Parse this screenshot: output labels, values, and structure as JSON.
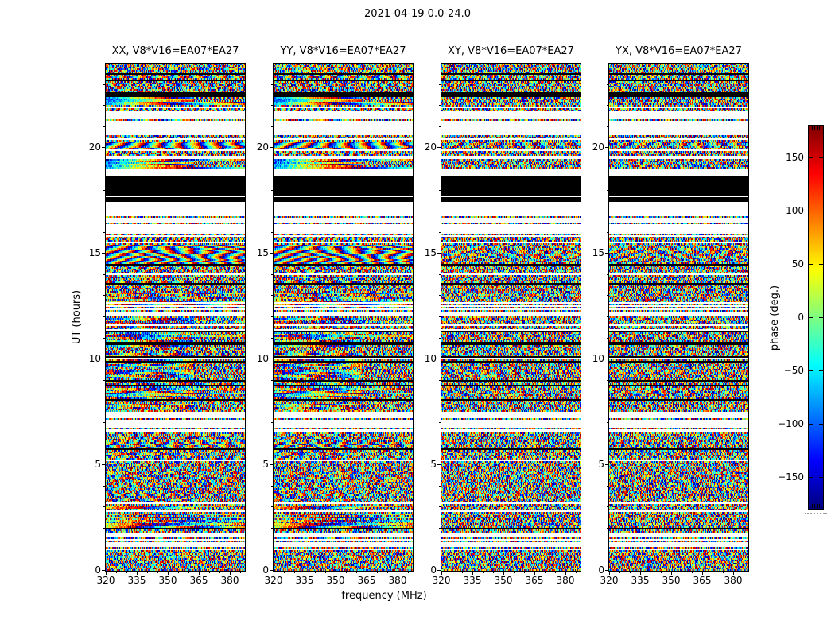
{
  "figure_title": "2021-04-19 0.0-24.0",
  "panels": [
    {
      "pol": "XX",
      "title": "XX, V8*V16=EA07*EA27"
    },
    {
      "pol": "YY",
      "title": "YY, V8*V16=EA07*EA27"
    },
    {
      "pol": "XY",
      "title": "XY, V8*V16=EA07*EA27"
    },
    {
      "pol": "YX",
      "title": "YX, V8*V16=EA07*EA27"
    }
  ],
  "axes": {
    "xlabel": "frequency (MHz)",
    "ylabel": "UT (hours)",
    "x_ticks": [
      320,
      335,
      350,
      365,
      380
    ],
    "y_ticks": [
      0,
      5,
      10,
      15,
      20
    ],
    "x_minor_step_mhz": 5,
    "y_minor_step_hours": 1,
    "x_range_mhz": [
      320,
      387.3
    ],
    "y_range_hours": [
      0,
      24
    ]
  },
  "colorbar": {
    "label": "phase (deg.)",
    "ticks": [
      150,
      100,
      50,
      0,
      -50,
      -100,
      -150
    ],
    "range_deg": [
      -180,
      180
    ],
    "colormap": "jet",
    "top_color": "#800000",
    "bottom_color": "#000080"
  },
  "chart_data": {
    "type": "heatmap",
    "title": "2021-04-19 0.0-24.0",
    "xlabel": "frequency (MHz)",
    "ylabel": "UT (hours)",
    "colorbar_label": "phase (deg.)",
    "colormap": "jet",
    "value_range_deg": [
      -180,
      180
    ],
    "x_range_mhz": [
      320,
      387.3
    ],
    "y_range_hours": [
      0,
      24
    ],
    "x_ticks": [
      320,
      335,
      350,
      365,
      380
    ],
    "y_ticks": [
      0,
      5,
      10,
      15,
      20
    ],
    "colorbar_ticks": [
      150,
      100,
      50,
      0,
      -50,
      -100,
      -150
    ],
    "baseline": "V8*V16=EA07*EA27",
    "polarizations": [
      "XX",
      "YY",
      "XY",
      "YX"
    ],
    "panel_titles": [
      "XX, V8*V16=EA07*EA27",
      "YY, V8*V16=EA07*EA27",
      "XY, V8*V16=EA07*EA27",
      "YX, V8*V16=EA07*EA27"
    ],
    "data_character": "noise-like interferometric visibility phase vs time (rows) and frequency (columns); phase wraps over -180..180 deg; XX/YY show smooth coherent phase bands where XY/YX show speckle; subband above ~362 MHz shows fine fringe moire; grid off",
    "legend_position": "colorbar right",
    "render_seed": 20210419,
    "time_segments": [
      {
        "start": 0.0,
        "end": 1.15,
        "type": "dense"
      },
      {
        "start": 1.15,
        "end": 1.95,
        "type": "sparse"
      },
      {
        "start": 1.95,
        "end": 3.05,
        "type": "smooth-dense"
      },
      {
        "start": 3.05,
        "end": 6.55,
        "type": "dense"
      },
      {
        "start": 6.55,
        "end": 7.55,
        "type": "sparse"
      },
      {
        "start": 7.55,
        "end": 12.05,
        "type": "stripes"
      },
      {
        "start": 12.05,
        "end": 12.55,
        "type": "sparse"
      },
      {
        "start": 12.55,
        "end": 13.35,
        "type": "smooth-dense"
      },
      {
        "start": 13.35,
        "end": 14.45,
        "type": "dense"
      },
      {
        "start": 14.45,
        "end": 15.45,
        "type": "wavy"
      },
      {
        "start": 15.45,
        "end": 15.95,
        "type": "fringe"
      },
      {
        "start": 15.95,
        "end": 17.35,
        "type": "sparse"
      },
      {
        "start": 17.35,
        "end": 17.95,
        "type": "black-bars"
      },
      {
        "start": 17.95,
        "end": 18.65,
        "type": "black"
      },
      {
        "start": 18.65,
        "end": 19.05,
        "type": "white"
      },
      {
        "start": 19.05,
        "end": 19.45,
        "type": "smooth"
      },
      {
        "start": 19.45,
        "end": 19.95,
        "type": "sparse"
      },
      {
        "start": 19.95,
        "end": 20.35,
        "type": "wavy"
      },
      {
        "start": 20.35,
        "end": 21.45,
        "type": "sparse"
      },
      {
        "start": 21.45,
        "end": 21.75,
        "type": "white"
      },
      {
        "start": 21.75,
        "end": 22.05,
        "type": "fringe"
      },
      {
        "start": 22.05,
        "end": 22.45,
        "type": "smooth"
      },
      {
        "start": 22.45,
        "end": 22.62,
        "type": "black"
      },
      {
        "start": 22.62,
        "end": 24.0,
        "type": "dense"
      }
    ]
  }
}
